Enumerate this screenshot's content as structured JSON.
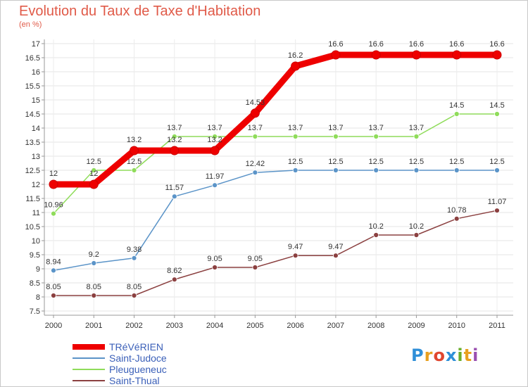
{
  "title": "Evolution du Taux de Taxe d'Habitation",
  "subtitle": "(en %)",
  "brand": {
    "letters": [
      "P",
      "r",
      "o",
      "x",
      "i",
      "t",
      "i"
    ],
    "colors": [
      "#2f8fd8",
      "#e8a020",
      "#e0462f",
      "#2f8fd8",
      "#6aae2a",
      "#e8a020",
      "#9a4fb0"
    ]
  },
  "chart_data": {
    "type": "line",
    "title": "Evolution du Taux de Taxe d'Habitation",
    "subtitle": "(en %)",
    "xlabel": "",
    "ylabel": "",
    "x": [
      "2000",
      "2001",
      "2002",
      "2003",
      "2004",
      "2005",
      "2006",
      "2007",
      "2008",
      "2009",
      "2010",
      "2011"
    ],
    "ylim": [
      7.5,
      17
    ],
    "yticks": [
      "7.5",
      "8",
      "8.5",
      "9",
      "9.5",
      "10",
      "10.5",
      "11",
      "11.5",
      "12",
      "12.5",
      "13",
      "13.5",
      "14",
      "14.5",
      "15",
      "15.5",
      "16",
      "16.5",
      "17"
    ],
    "grid": true,
    "legend_position": "bottom-left",
    "series": [
      {
        "name": "TRéVéRIEN",
        "color": "#ee0000",
        "values": [
          12,
          12,
          13.2,
          13.2,
          13.2,
          14.53,
          16.2,
          16.6,
          16.6,
          16.6,
          16.6,
          16.6
        ],
        "labels": [
          "12",
          "12",
          "13.2",
          "13.2",
          "13.2",
          "14.53",
          "16.2",
          "16.6",
          "16.6",
          "16.6",
          "16.6",
          "16.6"
        ]
      },
      {
        "name": "Saint-Judoce",
        "color": "#5b94c8",
        "values": [
          8.94,
          9.2,
          9.38,
          11.57,
          11.97,
          12.42,
          12.5,
          12.5,
          12.5,
          12.5,
          12.5,
          12.5
        ],
        "labels": [
          "8.94",
          "9.2",
          "9.38",
          "11.57",
          "11.97",
          "12.42",
          "12.5",
          "12.5",
          "12.5",
          "12.5",
          "12.5",
          "12.5"
        ]
      },
      {
        "name": "Pleugueneuc",
        "color": "#8fdc5a",
        "values": [
          10.96,
          12.5,
          12.5,
          13.7,
          13.7,
          13.7,
          13.7,
          13.7,
          13.7,
          13.7,
          14.5,
          14.5
        ],
        "labels": [
          "10.96",
          "12.5",
          "12.5",
          "13.7",
          "13.7",
          "13.7",
          "13.7",
          "13.7",
          "13.7",
          "13.7",
          "14.5",
          "14.5"
        ]
      },
      {
        "name": "Saint-Thual",
        "color": "#8b4040",
        "values": [
          8.05,
          8.05,
          8.05,
          8.62,
          9.05,
          9.05,
          9.47,
          9.47,
          10.2,
          10.2,
          10.78,
          11.07
        ],
        "labels": [
          "8.05",
          "8.05",
          "8.05",
          "8.62",
          "9.05",
          "9.05",
          "9.47",
          "9.47",
          "10.2",
          "10.2",
          "10.78",
          "11.07"
        ]
      }
    ]
  }
}
